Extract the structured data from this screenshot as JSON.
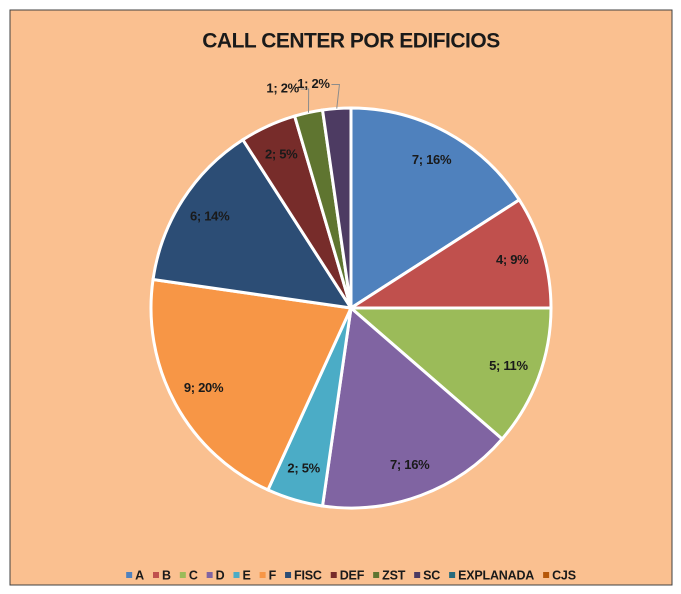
{
  "chart_data": {
    "type": "pie",
    "title": "CALL CENTER POR EDIFICIOS",
    "categories": [
      "A",
      "B",
      "C",
      "D",
      "E",
      "F",
      "FISC",
      "DEF",
      "ZST",
      "SC",
      "EXPLANADA",
      "CJS"
    ],
    "values": [
      7,
      4,
      5,
      7,
      2,
      9,
      6,
      2,
      1,
      1,
      0,
      0
    ],
    "value_labels": [
      "7; 16%",
      "4; 9%",
      "5; 11%",
      "7; 16%",
      "2; 5%",
      "9; 20%",
      "6; 14%",
      "2; 5%",
      "1; 2%",
      "1; 2%",
      null,
      null
    ],
    "colors": [
      "#4f81bd",
      "#c0504d",
      "#9bbb59",
      "#8064a2",
      "#4bacc6",
      "#f79646",
      "#2c4d75",
      "#772c2a",
      "#5f7530",
      "#4d3b62",
      "#276a7c",
      "#b65708"
    ],
    "legend": "bottom"
  }
}
